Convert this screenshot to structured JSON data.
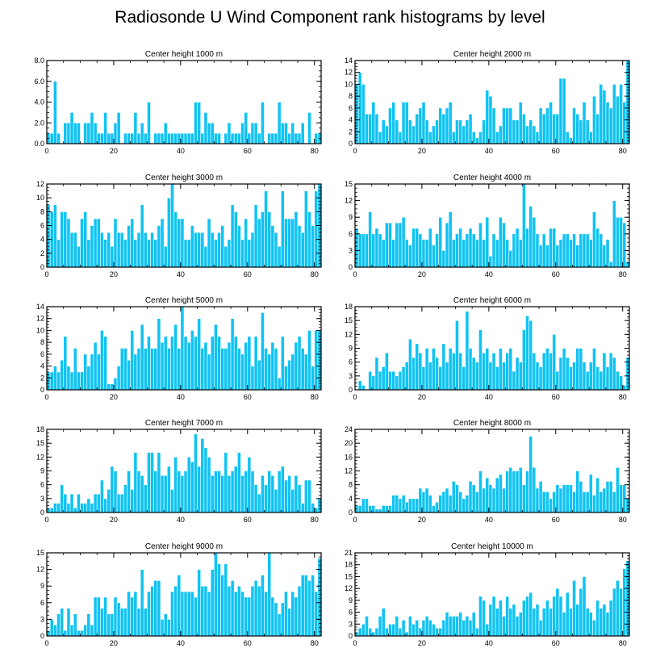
{
  "title": "Radiosonde U Wind Component rank histograms by level",
  "colors": {
    "bar": "#10c3f3",
    "bar_edge": "#ffffff",
    "axis": "#000000"
  },
  "chart_data": [
    {
      "type": "bar",
      "title": "Center height 1000 m",
      "xlabel": "",
      "ylabel": "",
      "xlim": [
        0,
        82
      ],
      "x_ticks": [
        0,
        20,
        40,
        60,
        80
      ],
      "x_tick_labels": [
        "0",
        "20",
        "40",
        "60",
        "80"
      ],
      "ylim": [
        0,
        8
      ],
      "y_ticks": [
        0,
        2,
        4,
        6,
        8
      ],
      "y_tick_labels": [
        "0.0",
        "2.0",
        "4.0",
        "6.0",
        "8.0"
      ],
      "values": [
        1,
        1,
        6,
        1,
        0,
        2,
        2,
        3,
        2,
        2,
        0,
        2,
        2,
        3,
        2,
        1,
        1,
        3,
        1,
        1,
        2,
        3,
        0,
        1,
        1,
        1,
        3,
        1,
        2,
        1,
        4,
        0,
        1,
        1,
        1,
        2,
        1,
        1,
        1,
        1,
        1,
        1,
        1,
        1,
        4,
        4,
        1,
        3,
        2,
        2,
        1,
        1,
        0,
        1,
        2,
        1,
        1,
        1,
        2,
        3,
        1,
        2,
        2,
        1,
        4,
        0,
        1,
        1,
        1,
        4,
        2,
        2,
        1,
        2,
        1,
        1,
        2,
        0,
        3,
        0,
        1,
        1
      ]
    },
    {
      "type": "bar",
      "title": "Center height 2000 m",
      "xlabel": "",
      "ylabel": "",
      "xlim": [
        0,
        82
      ],
      "x_ticks": [
        0,
        20,
        40,
        60,
        80
      ],
      "x_tick_labels": [
        "0",
        "20",
        "40",
        "60",
        "80"
      ],
      "ylim": [
        0,
        14
      ],
      "y_ticks": [
        0,
        2,
        4,
        6,
        8,
        10,
        12,
        14
      ],
      "y_tick_labels": [
        "0",
        "2",
        "4",
        "6",
        "8",
        "10",
        "12",
        "14"
      ],
      "values": [
        10,
        12,
        10,
        5,
        5,
        7,
        5,
        2,
        4,
        3,
        6,
        7,
        4,
        2,
        7,
        7,
        4,
        3,
        5,
        6,
        7,
        4,
        2,
        3,
        4,
        6,
        5,
        6,
        7,
        2,
        4,
        4,
        3,
        4,
        5,
        2,
        1,
        2,
        4,
        9,
        8,
        6,
        2,
        3,
        6,
        6,
        6,
        4,
        4,
        7,
        5,
        3,
        4,
        3,
        2,
        6,
        5,
        6,
        7,
        5,
        5,
        11,
        11,
        2,
        1,
        6,
        5,
        4,
        7,
        4,
        2,
        8,
        5,
        10,
        9,
        7,
        6,
        10,
        8,
        10,
        7,
        14
      ]
    },
    {
      "type": "bar",
      "title": "Center height 3000 m",
      "xlabel": "",
      "ylabel": "",
      "xlim": [
        0,
        82
      ],
      "x_ticks": [
        0,
        20,
        40,
        60,
        80
      ],
      "x_tick_labels": [
        "0",
        "20",
        "40",
        "60",
        "80"
      ],
      "ylim": [
        0,
        12
      ],
      "y_ticks": [
        0,
        2,
        4,
        6,
        8,
        10,
        12
      ],
      "y_tick_labels": [
        "0",
        "2",
        "4",
        "6",
        "8",
        "10",
        "12"
      ],
      "values": [
        9,
        8,
        9,
        4,
        8,
        8,
        7,
        5,
        5,
        3,
        7,
        8,
        4,
        6,
        7,
        7,
        5,
        4,
        5,
        3,
        7,
        5,
        5,
        4,
        6,
        7,
        4,
        5,
        9,
        5,
        4,
        5,
        4,
        6,
        7,
        3,
        10,
        12,
        8,
        7,
        7,
        4,
        4,
        6,
        5,
        5,
        5,
        3,
        7,
        5,
        4,
        5,
        6,
        3,
        4,
        9,
        8,
        6,
        4,
        7,
        4,
        5,
        9,
        7,
        8,
        11,
        8,
        6,
        5,
        3,
        11,
        7,
        7,
        7,
        8,
        6,
        5,
        11,
        8,
        6,
        11,
        12
      ]
    },
    {
      "type": "bar",
      "title": "Center height 4000 m",
      "xlabel": "",
      "ylabel": "",
      "xlim": [
        0,
        82
      ],
      "x_ticks": [
        0,
        20,
        40,
        60,
        80
      ],
      "x_tick_labels": [
        "0",
        "20",
        "40",
        "60",
        "80"
      ],
      "ylim": [
        0,
        15
      ],
      "y_ticks": [
        0,
        3,
        6,
        9,
        12,
        15
      ],
      "y_tick_labels": [
        "0",
        "3",
        "6",
        "9",
        "12",
        "15"
      ],
      "values": [
        7,
        6,
        6,
        6,
        10,
        6,
        7,
        6,
        5,
        8,
        8,
        5,
        8,
        8,
        9,
        5,
        4,
        7,
        7,
        6,
        5,
        5,
        7,
        4,
        6,
        9,
        3,
        8,
        10,
        5,
        6,
        7,
        5,
        6,
        7,
        6,
        5,
        8,
        5,
        9,
        2,
        6,
        5,
        9,
        8,
        5,
        3,
        6,
        7,
        5,
        15,
        7,
        11,
        9,
        6,
        4,
        6,
        4,
        7,
        7,
        4,
        5,
        6,
        6,
        5,
        6,
        4,
        6,
        6,
        6,
        5,
        10,
        7,
        6,
        4,
        5,
        1,
        12,
        9,
        9,
        8,
        1
      ]
    },
    {
      "type": "bar",
      "title": "Center height 5000 m",
      "xlabel": "",
      "ylabel": "",
      "xlim": [
        0,
        82
      ],
      "x_ticks": [
        0,
        20,
        40,
        60,
        80
      ],
      "x_tick_labels": [
        "0",
        "20",
        "40",
        "60",
        "80"
      ],
      "ylim": [
        0,
        14
      ],
      "y_ticks": [
        0,
        2,
        4,
        6,
        8,
        10,
        12,
        14
      ],
      "y_tick_labels": [
        "0",
        "2",
        "4",
        "6",
        "8",
        "10",
        "12",
        "14"
      ],
      "values": [
        3,
        3,
        4,
        3,
        5,
        9,
        4,
        3,
        7,
        3,
        3,
        6,
        4,
        6,
        8,
        6,
        10,
        9,
        1,
        1,
        2,
        4,
        7,
        7,
        5,
        10,
        6,
        7,
        11,
        7,
        9,
        7,
        7,
        12,
        8,
        9,
        7,
        9,
        11,
        7,
        14,
        9,
        8,
        10,
        9,
        12,
        7,
        8,
        6,
        9,
        11,
        9,
        7,
        7,
        8,
        12,
        9,
        7,
        6,
        8,
        9,
        4,
        9,
        5,
        13,
        7,
        6,
        8,
        7,
        2,
        9,
        4,
        5,
        6,
        8,
        9,
        7,
        6,
        10,
        4,
        10,
        10
      ]
    },
    {
      "type": "bar",
      "title": "Center height 6000 m",
      "xlabel": "",
      "ylabel": "",
      "xlim": [
        0,
        82
      ],
      "x_ticks": [
        0,
        20,
        40,
        60,
        80
      ],
      "x_tick_labels": [
        "0",
        "20",
        "40",
        "60",
        "80"
      ],
      "ylim": [
        0,
        18
      ],
      "y_ticks": [
        0,
        3,
        6,
        9,
        12,
        15,
        18
      ],
      "y_tick_labels": [
        "0",
        "3",
        "6",
        "9",
        "12",
        "15",
        "18"
      ],
      "values": [
        0,
        2,
        1,
        0,
        4,
        3,
        7,
        4,
        5,
        8,
        4,
        4,
        3,
        4,
        5,
        6,
        11,
        7,
        10,
        8,
        5,
        9,
        6,
        9,
        7,
        5,
        10,
        6,
        9,
        8,
        15,
        8,
        5,
        17,
        9,
        7,
        6,
        13,
        8,
        9,
        6,
        8,
        5,
        9,
        6,
        8,
        9,
        4,
        7,
        6,
        13,
        16,
        15,
        8,
        6,
        5,
        8,
        9,
        8,
        12,
        4,
        7,
        9,
        7,
        5,
        6,
        9,
        9,
        6,
        4,
        6,
        9,
        5,
        4,
        8,
        5,
        8,
        7,
        4,
        3,
        1,
        7
      ]
    },
    {
      "type": "bar",
      "title": "Center height 7000 m",
      "xlabel": "",
      "ylabel": "",
      "xlim": [
        0,
        82
      ],
      "x_ticks": [
        0,
        20,
        40,
        60,
        80
      ],
      "x_tick_labels": [
        "0",
        "20",
        "40",
        "60",
        "80"
      ],
      "ylim": [
        0,
        18
      ],
      "y_ticks": [
        0,
        3,
        6,
        9,
        12,
        15,
        18
      ],
      "y_tick_labels": [
        "0",
        "3",
        "6",
        "9",
        "12",
        "15",
        "18"
      ],
      "values": [
        1,
        1,
        2,
        2,
        6,
        4,
        2,
        4,
        1,
        4,
        2,
        2,
        3,
        2,
        4,
        4,
        7,
        3,
        5,
        10,
        9,
        4,
        4,
        6,
        9,
        5,
        13,
        9,
        8,
        6,
        13,
        13,
        9,
        13,
        8,
        8,
        10,
        5,
        12,
        9,
        8,
        9,
        12,
        11,
        17,
        10,
        16,
        14,
        12,
        8,
        9,
        9,
        8,
        13,
        8,
        9,
        10,
        13,
        8,
        9,
        12,
        9,
        6,
        4,
        8,
        6,
        9,
        8,
        5,
        9,
        10,
        7,
        8,
        5,
        8,
        6,
        2,
        7,
        7,
        2,
        1,
        3
      ]
    },
    {
      "type": "bar",
      "title": "Center height 8000 m",
      "xlabel": "",
      "ylabel": "",
      "xlim": [
        0,
        82
      ],
      "x_ticks": [
        0,
        20,
        40,
        60,
        80
      ],
      "x_tick_labels": [
        "0",
        "20",
        "40",
        "60",
        "80"
      ],
      "ylim": [
        0,
        24
      ],
      "y_ticks": [
        0,
        4,
        8,
        12,
        16,
        20,
        24
      ],
      "y_tick_labels": [
        "0",
        "4",
        "8",
        "12",
        "16",
        "20",
        "24"
      ],
      "values": [
        2,
        2,
        4,
        4,
        2,
        2,
        1,
        1,
        2,
        2,
        2,
        5,
        5,
        4,
        5,
        3,
        4,
        4,
        4,
        7,
        6,
        7,
        5,
        2,
        3,
        5,
        6,
        7,
        5,
        9,
        8,
        6,
        4,
        5,
        9,
        8,
        6,
        12,
        7,
        10,
        8,
        7,
        10,
        11,
        7,
        12,
        13,
        12,
        12,
        13,
        8,
        12,
        22,
        13,
        7,
        9,
        6,
        6,
        4,
        6,
        8,
        7,
        8,
        8,
        8,
        6,
        12,
        9,
        6,
        6,
        11,
        5,
        10,
        6,
        7,
        9,
        9,
        6,
        13,
        8,
        8,
        4
      ]
    },
    {
      "type": "bar",
      "title": "Center height 9000 m",
      "xlabel": "",
      "ylabel": "",
      "xlim": [
        0,
        82
      ],
      "x_ticks": [
        0,
        20,
        40,
        60,
        80
      ],
      "x_tick_labels": [
        "0",
        "20",
        "40",
        "60",
        "80"
      ],
      "ylim": [
        0,
        15
      ],
      "y_ticks": [
        0,
        3,
        6,
        9,
        12,
        15
      ],
      "y_tick_labels": [
        "0",
        "3",
        "6",
        "9",
        "12",
        "15"
      ],
      "values": [
        1,
        3,
        2,
        4,
        5,
        1,
        5,
        2,
        4,
        1,
        1,
        2,
        4,
        2,
        7,
        7,
        5,
        7,
        4,
        4,
        7,
        6,
        5,
        5,
        8,
        7,
        8,
        5,
        12,
        5,
        8,
        9,
        10,
        10,
        3,
        4,
        3,
        8,
        9,
        11,
        8,
        8,
        8,
        8,
        7,
        12,
        9,
        9,
        8,
        12,
        15,
        13,
        11,
        13,
        9,
        10,
        8,
        9,
        8,
        7,
        7,
        9,
        10,
        9,
        11,
        8,
        15,
        7,
        6,
        4,
        6,
        8,
        5,
        8,
        7,
        9,
        11,
        11,
        10,
        11,
        8,
        14
      ]
    },
    {
      "type": "bar",
      "title": "Center height 10000 m",
      "xlabel": "",
      "ylabel": "",
      "xlim": [
        0,
        82
      ],
      "x_ticks": [
        0,
        20,
        40,
        60,
        80
      ],
      "x_tick_labels": [
        "0",
        "20",
        "40",
        "60",
        "80"
      ],
      "ylim": [
        0,
        21
      ],
      "y_ticks": [
        0,
        3,
        6,
        9,
        12,
        15,
        18,
        21
      ],
      "y_tick_labels": [
        "0",
        "3",
        "6",
        "9",
        "12",
        "15",
        "18",
        "21"
      ],
      "values": [
        1,
        2,
        3,
        5,
        2,
        1,
        2,
        5,
        7,
        2,
        3,
        3,
        5,
        2,
        4,
        1,
        5,
        3,
        4,
        2,
        4,
        5,
        4,
        3,
        2,
        2,
        4,
        6,
        5,
        5,
        5,
        6,
        4,
        5,
        4,
        6,
        2,
        10,
        9,
        3,
        8,
        10,
        7,
        9,
        5,
        10,
        7,
        8,
        5,
        6,
        9,
        10,
        11,
        7,
        8,
        4,
        7,
        9,
        7,
        10,
        12,
        10,
        6,
        11,
        7,
        14,
        8,
        12,
        15,
        7,
        6,
        4,
        9,
        7,
        8,
        6,
        9,
        12,
        14,
        12,
        17,
        19
      ]
    }
  ]
}
